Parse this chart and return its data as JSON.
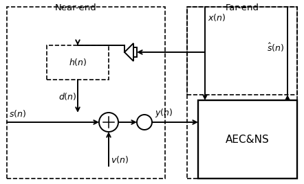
{
  "fig_width": 4.42,
  "fig_height": 2.68,
  "dpi": 100,
  "bg_color": "#ffffff",
  "near_end_label": "Near-end",
  "far_end_label": "Far-end",
  "aec_label": "AEC&NS",
  "h_label": "$h(n)$",
  "s_label": "$s(n)$",
  "d_label": "$d(n)$",
  "v_label": "$v(n)$",
  "y_label": "$y(n)$",
  "x_label": "$x(n)$",
  "shat_label": "$\\hat{s}(n)$",
  "lw": 1.4,
  "dash_lw": 1.2
}
